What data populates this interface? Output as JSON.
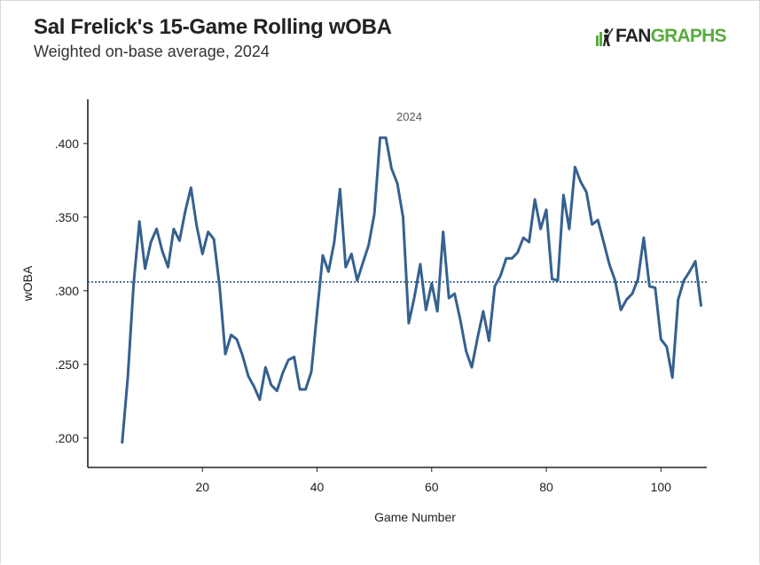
{
  "header": {
    "title": "Sal Frelick's 15-Game Rolling wOBA",
    "subtitle": "Weighted on-base average, 2024",
    "logo_left": "FAN",
    "logo_right": "GRAPHS"
  },
  "colors": {
    "line": "#35618f",
    "reference": "#35618f",
    "brand_green": "#59ab3c"
  },
  "chart_data": {
    "type": "line",
    "title": "Sal Frelick's 15-Game Rolling wOBA",
    "subtitle": "Weighted on-base average, 2024",
    "xlabel": "Game Number",
    "ylabel": "wOBA",
    "xlim": [
      0,
      108
    ],
    "ylim": [
      0.18,
      0.43
    ],
    "x_ticks": [
      20,
      40,
      60,
      80,
      100
    ],
    "y_ticks": [
      0.2,
      0.25,
      0.3,
      0.35,
      0.4
    ],
    "y_tick_labels": [
      ".200",
      ".250",
      ".300",
      ".350",
      ".400"
    ],
    "reference_line": 0.306,
    "annotation": {
      "text": "2024",
      "x": 55,
      "y": 0.418
    },
    "series": [
      {
        "name": "2024",
        "x": [
          6,
          7,
          8,
          9,
          10,
          11,
          12,
          13,
          14,
          15,
          16,
          17,
          18,
          19,
          20,
          21,
          22,
          23,
          24,
          25,
          26,
          27,
          28,
          29,
          30,
          31,
          32,
          33,
          34,
          35,
          36,
          37,
          38,
          39,
          40,
          41,
          42,
          43,
          44,
          45,
          46,
          47,
          48,
          49,
          50,
          51,
          52,
          53,
          54,
          55,
          56,
          57,
          58,
          59,
          60,
          61,
          62,
          63,
          64,
          65,
          66,
          67,
          68,
          69,
          70,
          71,
          72,
          73,
          74,
          75,
          76,
          77,
          78,
          79,
          80,
          81,
          82,
          83,
          84,
          85,
          86,
          87,
          88,
          89,
          90,
          91,
          92,
          93,
          94,
          95,
          96,
          97,
          98,
          99,
          100,
          101,
          102,
          103,
          104,
          105,
          106,
          107
        ],
        "values": [
          0.197,
          0.242,
          0.305,
          0.347,
          0.315,
          0.333,
          0.342,
          0.327,
          0.316,
          0.342,
          0.334,
          0.354,
          0.37,
          0.344,
          0.325,
          0.34,
          0.335,
          0.303,
          0.257,
          0.27,
          0.267,
          0.256,
          0.242,
          0.235,
          0.226,
          0.248,
          0.236,
          0.232,
          0.244,
          0.253,
          0.255,
          0.233,
          0.233,
          0.245,
          0.285,
          0.324,
          0.313,
          0.333,
          0.369,
          0.316,
          0.325,
          0.307,
          0.319,
          0.331,
          0.352,
          0.404,
          0.404,
          0.383,
          0.373,
          0.35,
          0.278,
          0.296,
          0.318,
          0.287,
          0.305,
          0.286,
          0.34,
          0.295,
          0.298,
          0.28,
          0.259,
          0.248,
          0.268,
          0.286,
          0.266,
          0.303,
          0.31,
          0.322,
          0.322,
          0.326,
          0.336,
          0.333,
          0.362,
          0.342,
          0.355,
          0.308,
          0.307,
          0.365,
          0.342,
          0.384,
          0.374,
          0.367,
          0.345,
          0.348,
          0.333,
          0.318,
          0.307,
          0.287,
          0.294,
          0.298,
          0.308,
          0.336,
          0.303,
          0.302,
          0.267,
          0.262,
          0.241,
          0.294,
          0.307,
          0.313,
          0.32,
          0.29
        ]
      }
    ]
  }
}
